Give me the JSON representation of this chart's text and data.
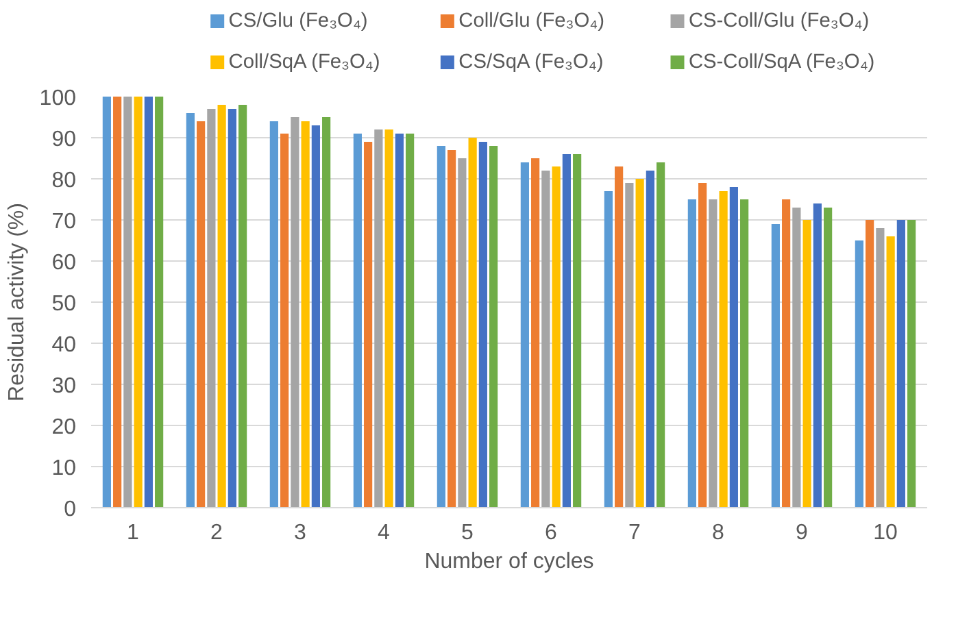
{
  "chart_data": {
    "type": "bar",
    "xlabel": "Number of cycles",
    "ylabel": "Residual activity (%)",
    "categories": [
      "1",
      "2",
      "3",
      "4",
      "5",
      "6",
      "7",
      "8",
      "9",
      "10"
    ],
    "series": [
      {
        "name": "CS/Glu (Fe₃O₄)",
        "color": "#5b9bd5",
        "values": [
          100,
          96,
          94,
          91,
          88,
          84,
          77,
          75,
          69,
          65
        ]
      },
      {
        "name": "Coll/Glu (Fe₃O₄)",
        "color": "#ed7d31",
        "values": [
          100,
          94,
          91,
          89,
          87,
          85,
          83,
          79,
          75,
          70
        ]
      },
      {
        "name": "CS-Coll/Glu (Fe₃O₄)",
        "color": "#a5a5a5",
        "values": [
          100,
          97,
          95,
          92,
          85,
          82,
          79,
          75,
          73,
          68
        ]
      },
      {
        "name": "Coll/SqA (Fe₃O₄)",
        "color": "#ffc000",
        "values": [
          100,
          98,
          94,
          92,
          90,
          83,
          80,
          77,
          70,
          66
        ]
      },
      {
        "name": "CS/SqA (Fe₃O₄)",
        "color": "#4472c4",
        "values": [
          100,
          97,
          93,
          91,
          89,
          86,
          82,
          78,
          74,
          70
        ]
      },
      {
        "name": "CS-Coll/SqA (Fe₃O₄)",
        "color": "#70ad47",
        "values": [
          100,
          98,
          95,
          91,
          88,
          86,
          84,
          75,
          73,
          70
        ]
      }
    ],
    "ylim": [
      0,
      100
    ],
    "yticks": [
      0,
      10,
      20,
      30,
      40,
      50,
      60,
      70,
      80,
      90,
      100
    ],
    "grid": "y",
    "legend": "top"
  }
}
